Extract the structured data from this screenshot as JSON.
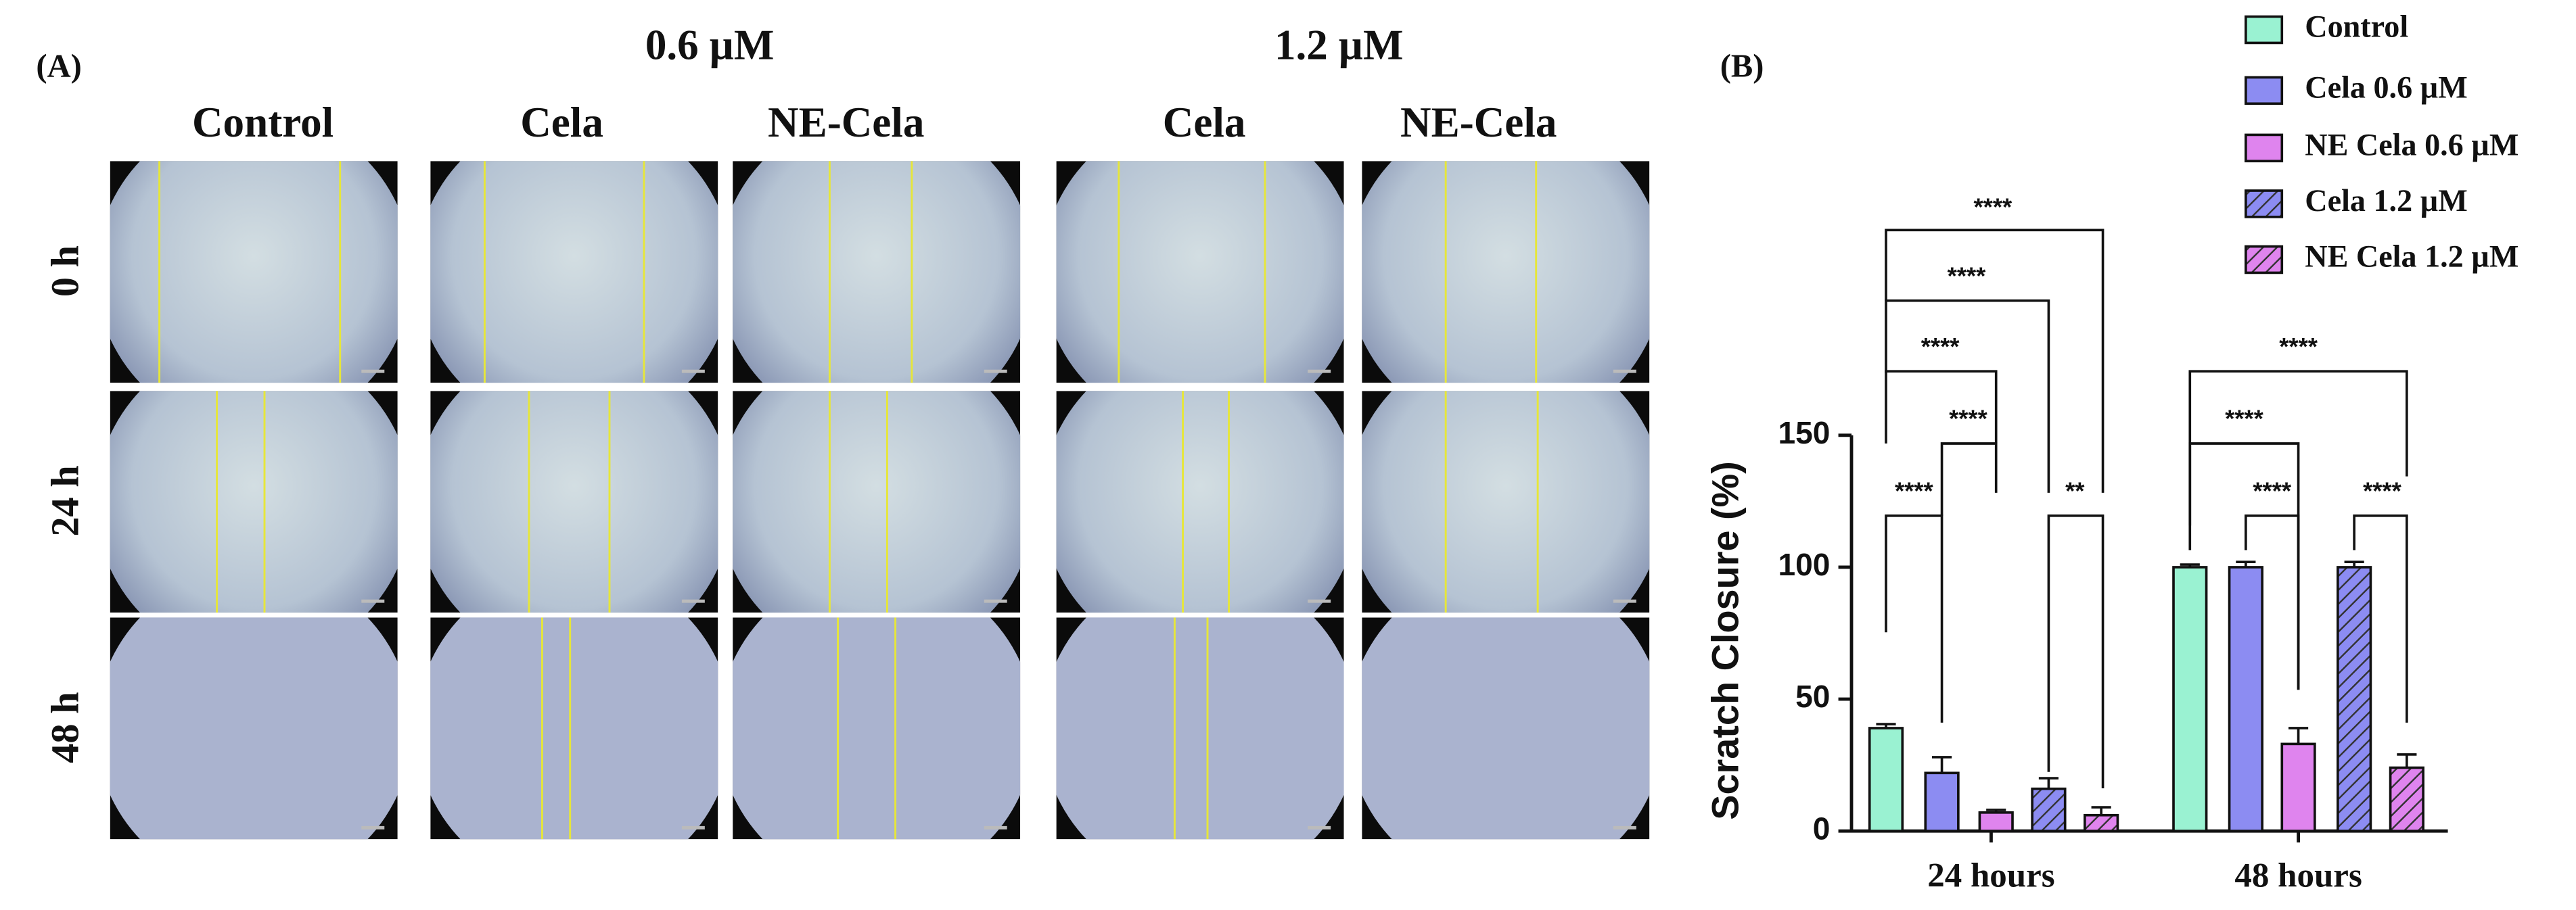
{
  "panel_a": {
    "label": "(A)",
    "concentrations": [
      "0.6 µM",
      "1.2 µM"
    ],
    "columns": [
      "Control",
      "Cela",
      "NE-Cela",
      "Cela",
      "NE-Cela"
    ],
    "rows": [
      "0 h",
      "24 h",
      "48 h"
    ]
  },
  "chart_data": {
    "type": "bar",
    "label": "(B)",
    "y_label": "Scratch Closure (%)",
    "categories": [
      "24 hours",
      "48 hours"
    ],
    "series": [
      {
        "name": "Control",
        "color": "#9af2d2",
        "hatch": false,
        "values": [
          39,
          100
        ],
        "errors": [
          1.5,
          1
        ]
      },
      {
        "name": "Cela 0.6 µM",
        "color": "#8c8cf2",
        "hatch": false,
        "values": [
          22,
          100
        ],
        "errors": [
          6,
          2
        ]
      },
      {
        "name": "NE Cela 0.6 µM",
        "color": "#df84ee",
        "hatch": false,
        "values": [
          7,
          33
        ],
        "errors": [
          1,
          6
        ]
      },
      {
        "name": "Cela 1.2 µM",
        "color": "#8c8cf2",
        "hatch": true,
        "values": [
          16,
          100
        ],
        "errors": [
          4,
          2
        ]
      },
      {
        "name": "NE Cela 1.2 µM",
        "color": "#df84ee",
        "hatch": true,
        "values": [
          6,
          24
        ],
        "errors": [
          3,
          5
        ]
      }
    ],
    "ylim": [
      0,
      150
    ],
    "yticks": [
      0,
      50,
      100,
      150
    ],
    "annotations": [
      "****",
      "****",
      "****",
      "****",
      "****",
      "**",
      "****",
      "****",
      "****",
      "****"
    ]
  }
}
